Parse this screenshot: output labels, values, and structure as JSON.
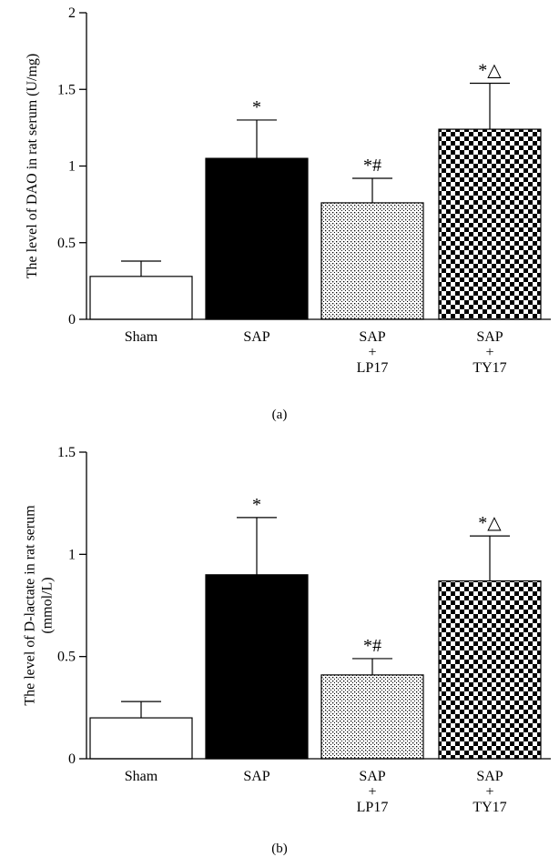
{
  "colors": {
    "axis": "#000000",
    "sham_fill": "#ffffff",
    "sap_fill": "#000000"
  },
  "chart_data": [
    {
      "type": "bar",
      "panel_label": "(a)",
      "categories": [
        [
          "Sham"
        ],
        [
          "SAP"
        ],
        [
          "SAP",
          "+",
          "LP17"
        ],
        [
          "SAP",
          "+",
          "TY17"
        ]
      ],
      "values": [
        0.28,
        1.05,
        0.76,
        1.24
      ],
      "errors": [
        0.1,
        0.25,
        0.16,
        0.3
      ],
      "significance": [
        "",
        "*",
        "*#",
        "*△"
      ],
      "fill_patterns": [
        "white",
        "solid-black",
        "dotted",
        "checkerboard"
      ],
      "ylabel_lines": [
        "The level of DAO in rat serum (U/mg)"
      ],
      "ylim": [
        0,
        2
      ],
      "yticks": [
        0,
        0.5,
        1,
        1.5,
        2
      ],
      "ytick_labels": [
        "0",
        "0.5",
        "1",
        "1.5",
        "2"
      ],
      "grid": false
    },
    {
      "type": "bar",
      "panel_label": "(b)",
      "categories": [
        [
          "Sham"
        ],
        [
          "SAP"
        ],
        [
          "SAP",
          "+",
          "LP17"
        ],
        [
          "SAP",
          "+",
          "TY17"
        ]
      ],
      "values": [
        0.2,
        0.9,
        0.41,
        0.87
      ],
      "errors": [
        0.08,
        0.28,
        0.08,
        0.22
      ],
      "significance": [
        "",
        "*",
        "*#",
        "*△"
      ],
      "fill_patterns": [
        "white",
        "solid-black",
        "dotted",
        "checkerboard"
      ],
      "ylabel_lines": [
        "The level of D-lactate in rat serum",
        "(mmol/L)"
      ],
      "ylim": [
        0,
        1.5
      ],
      "yticks": [
        0,
        0.5,
        1,
        1.5
      ],
      "ytick_labels": [
        "0",
        "0.5",
        "1",
        "1.5"
      ],
      "grid": false
    }
  ]
}
